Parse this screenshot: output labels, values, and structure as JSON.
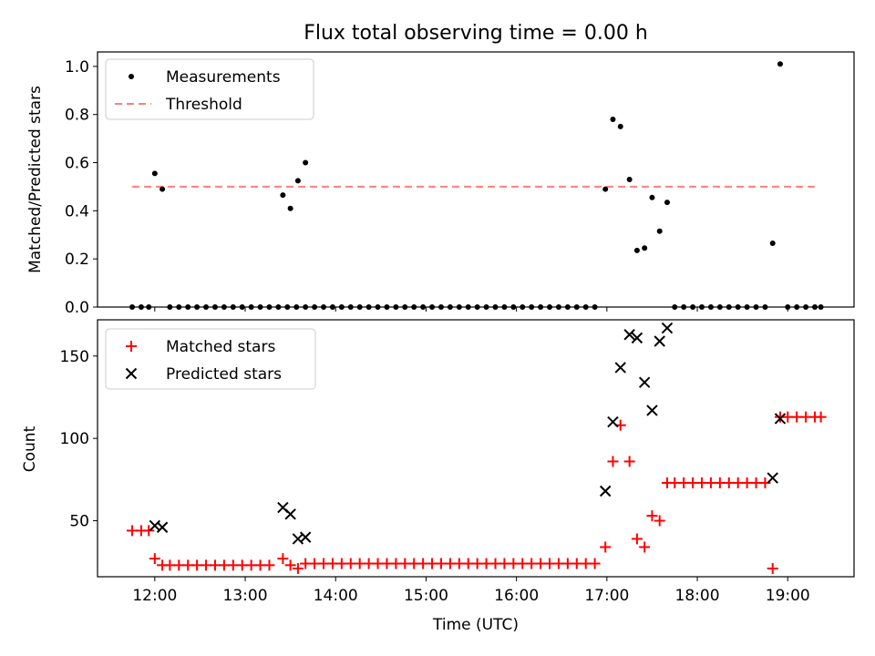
{
  "title": "Flux total observing time = 0.00 h",
  "chart_data": [
    {
      "type": "scatter",
      "panel": "top",
      "ylabel": "Matched/Predicted stars",
      "xlabel": "",
      "xlim": [
        "11:22",
        "19:44"
      ],
      "ylim": [
        0.0,
        1.06
      ],
      "yticks": [
        {
          "v": 0.0,
          "label": "0.0"
        },
        {
          "v": 0.2,
          "label": "0.2"
        },
        {
          "v": 0.4,
          "label": "0.4"
        },
        {
          "v": 0.6,
          "label": "0.6"
        },
        {
          "v": 0.8,
          "label": "0.8"
        },
        {
          "v": 1.0,
          "label": "1.0"
        }
      ],
      "legend_placement": "top-left",
      "legend": [
        {
          "name": "Measurements",
          "marker": "dot",
          "color": "#000000"
        },
        {
          "name": "Threshold",
          "marker": "dashed-line",
          "color": "#ff7f7f"
        }
      ],
      "threshold": {
        "name": "Threshold",
        "y": 0.5,
        "x_start": "11:45",
        "x_end": "19:21",
        "color": "#ff7f7f"
      },
      "series": [
        {
          "name": "Measurements",
          "color": "#000000",
          "points": [
            [
              "11:45",
              0
            ],
            [
              "11:51",
              0
            ],
            [
              "11:56",
              0
            ],
            [
              "12:00",
              0.555
            ],
            [
              "12:05",
              0.49
            ],
            [
              "12:10",
              0
            ],
            [
              "12:16",
              0
            ],
            [
              "12:22",
              0
            ],
            [
              "12:28",
              0
            ],
            [
              "12:34",
              0
            ],
            [
              "12:40",
              0
            ],
            [
              "12:46",
              0
            ],
            [
              "12:52",
              0
            ],
            [
              "12:58",
              0
            ],
            [
              "13:04",
              0
            ],
            [
              "13:10",
              0
            ],
            [
              "13:16",
              0
            ],
            [
              "13:22",
              0
            ],
            [
              "13:28",
              0
            ],
            [
              "13:34",
              0
            ],
            [
              "13:40",
              0
            ],
            [
              "13:25",
              0.465
            ],
            [
              "13:30",
              0.41
            ],
            [
              "13:35",
              0.525
            ],
            [
              "13:40",
              0.6
            ],
            [
              "13:46",
              0
            ],
            [
              "13:52",
              0
            ],
            [
              "13:58",
              0
            ],
            [
              "14:04",
              0
            ],
            [
              "14:10",
              0
            ],
            [
              "14:16",
              0
            ],
            [
              "14:22",
              0
            ],
            [
              "14:28",
              0
            ],
            [
              "14:34",
              0
            ],
            [
              "14:40",
              0
            ],
            [
              "14:46",
              0
            ],
            [
              "14:52",
              0
            ],
            [
              "14:58",
              0
            ],
            [
              "15:04",
              0
            ],
            [
              "15:10",
              0
            ],
            [
              "15:16",
              0
            ],
            [
              "15:22",
              0
            ],
            [
              "15:28",
              0
            ],
            [
              "15:34",
              0
            ],
            [
              "15:40",
              0
            ],
            [
              "15:46",
              0
            ],
            [
              "15:52",
              0
            ],
            [
              "15:58",
              0
            ],
            [
              "16:04",
              0
            ],
            [
              "16:10",
              0
            ],
            [
              "16:16",
              0
            ],
            [
              "16:22",
              0
            ],
            [
              "16:28",
              0
            ],
            [
              "16:34",
              0
            ],
            [
              "16:40",
              0
            ],
            [
              "16:46",
              0
            ],
            [
              "16:52",
              0
            ],
            [
              "16:59",
              0.49
            ],
            [
              "17:04",
              0.78
            ],
            [
              "17:09",
              0.75
            ],
            [
              "17:15",
              0.53
            ],
            [
              "17:20",
              0.235
            ],
            [
              "17:25",
              0.245
            ],
            [
              "17:30",
              0.455
            ],
            [
              "17:35",
              0.315
            ],
            [
              "17:40",
              0.435
            ],
            [
              "17:45",
              0
            ],
            [
              "17:51",
              0
            ],
            [
              "17:57",
              0
            ],
            [
              "18:03",
              0
            ],
            [
              "18:09",
              0
            ],
            [
              "18:15",
              0
            ],
            [
              "18:21",
              0
            ],
            [
              "18:27",
              0
            ],
            [
              "18:33",
              0
            ],
            [
              "18:39",
              0
            ],
            [
              "18:45",
              0
            ],
            [
              "18:50",
              0.265
            ],
            [
              "18:55",
              1.01
            ],
            [
              "19:00",
              0
            ],
            [
              "19:06",
              0
            ],
            [
              "19:12",
              0
            ],
            [
              "19:18",
              0
            ],
            [
              "19:22",
              0
            ]
          ]
        }
      ]
    },
    {
      "type": "scatter",
      "panel": "bottom",
      "ylabel": "Count",
      "xlabel": "Time (UTC)",
      "xlim": [
        "11:22",
        "19:44"
      ],
      "ylim": [
        16,
        172
      ],
      "yticks": [
        {
          "v": 50,
          "label": "50"
        },
        {
          "v": 100,
          "label": "100"
        },
        {
          "v": 150,
          "label": "150"
        }
      ],
      "xticks": [
        {
          "t": "12:00",
          "label": "12:00"
        },
        {
          "t": "13:00",
          "label": "13:00"
        },
        {
          "t": "14:00",
          "label": "14:00"
        },
        {
          "t": "15:00",
          "label": "15:00"
        },
        {
          "t": "16:00",
          "label": "16:00"
        },
        {
          "t": "17:00",
          "label": "17:00"
        },
        {
          "t": "18:00",
          "label": "18:00"
        },
        {
          "t": "19:00",
          "label": "19:00"
        }
      ],
      "legend_placement": "top-left",
      "legend": [
        {
          "name": "Matched stars",
          "marker": "plus",
          "color": "#ff0000"
        },
        {
          "name": "Predicted stars",
          "marker": "x",
          "color": "#000000"
        }
      ],
      "series": [
        {
          "name": "Matched stars",
          "marker": "plus",
          "color": "#ff0000",
          "points": [
            [
              "11:45",
              44
            ],
            [
              "11:51",
              44
            ],
            [
              "11:56",
              44
            ],
            [
              "12:00",
              27
            ],
            [
              "12:05",
              23
            ],
            [
              "12:10",
              23
            ],
            [
              "12:16",
              23
            ],
            [
              "12:22",
              23
            ],
            [
              "12:28",
              23
            ],
            [
              "12:34",
              23
            ],
            [
              "12:40",
              23
            ],
            [
              "12:46",
              23
            ],
            [
              "12:52",
              23
            ],
            [
              "12:58",
              23
            ],
            [
              "13:04",
              23
            ],
            [
              "13:10",
              23
            ],
            [
              "13:16",
              23
            ],
            [
              "13:25",
              27
            ],
            [
              "13:30",
              23
            ],
            [
              "13:35",
              21
            ],
            [
              "13:40",
              24
            ],
            [
              "13:46",
              24
            ],
            [
              "13:52",
              24
            ],
            [
              "13:58",
              24
            ],
            [
              "14:04",
              24
            ],
            [
              "14:10",
              24
            ],
            [
              "14:16",
              24
            ],
            [
              "14:22",
              24
            ],
            [
              "14:28",
              24
            ],
            [
              "14:34",
              24
            ],
            [
              "14:40",
              24
            ],
            [
              "14:46",
              24
            ],
            [
              "14:52",
              24
            ],
            [
              "14:58",
              24
            ],
            [
              "15:04",
              24
            ],
            [
              "15:10",
              24
            ],
            [
              "15:16",
              24
            ],
            [
              "15:22",
              24
            ],
            [
              "15:28",
              24
            ],
            [
              "15:34",
              24
            ],
            [
              "15:40",
              24
            ],
            [
              "15:46",
              24
            ],
            [
              "15:52",
              24
            ],
            [
              "15:58",
              24
            ],
            [
              "16:04",
              24
            ],
            [
              "16:10",
              24
            ],
            [
              "16:16",
              24
            ],
            [
              "16:22",
              24
            ],
            [
              "16:28",
              24
            ],
            [
              "16:34",
              24
            ],
            [
              "16:40",
              24
            ],
            [
              "16:46",
              24
            ],
            [
              "16:52",
              24
            ],
            [
              "16:59",
              34
            ],
            [
              "17:04",
              86
            ],
            [
              "17:09",
              108
            ],
            [
              "17:15",
              86
            ],
            [
              "17:20",
              39
            ],
            [
              "17:25",
              34
            ],
            [
              "17:30",
              53
            ],
            [
              "17:35",
              50
            ],
            [
              "17:40",
              73
            ],
            [
              "17:45",
              73
            ],
            [
              "17:51",
              73
            ],
            [
              "17:57",
              73
            ],
            [
              "18:03",
              73
            ],
            [
              "18:09",
              73
            ],
            [
              "18:15",
              73
            ],
            [
              "18:21",
              73
            ],
            [
              "18:27",
              73
            ],
            [
              "18:33",
              73
            ],
            [
              "18:39",
              73
            ],
            [
              "18:45",
              73
            ],
            [
              "18:50",
              21
            ],
            [
              "18:55",
              113
            ],
            [
              "19:00",
              113
            ],
            [
              "19:06",
              113
            ],
            [
              "19:12",
              113
            ],
            [
              "19:18",
              113
            ],
            [
              "19:22",
              113
            ]
          ]
        },
        {
          "name": "Predicted stars",
          "marker": "x",
          "color": "#000000",
          "points": [
            [
              "12:00",
              47
            ],
            [
              "12:05",
              46
            ],
            [
              "13:25",
              58
            ],
            [
              "13:30",
              54
            ],
            [
              "13:35",
              39
            ],
            [
              "13:40",
              40
            ],
            [
              "16:59",
              68
            ],
            [
              "17:04",
              110
            ],
            [
              "17:09",
              143
            ],
            [
              "17:15",
              163
            ],
            [
              "17:20",
              161
            ],
            [
              "17:25",
              134
            ],
            [
              "17:30",
              117
            ],
            [
              "17:35",
              159
            ],
            [
              "17:40",
              167
            ],
            [
              "18:50",
              76
            ],
            [
              "18:55",
              112
            ]
          ]
        }
      ]
    }
  ]
}
